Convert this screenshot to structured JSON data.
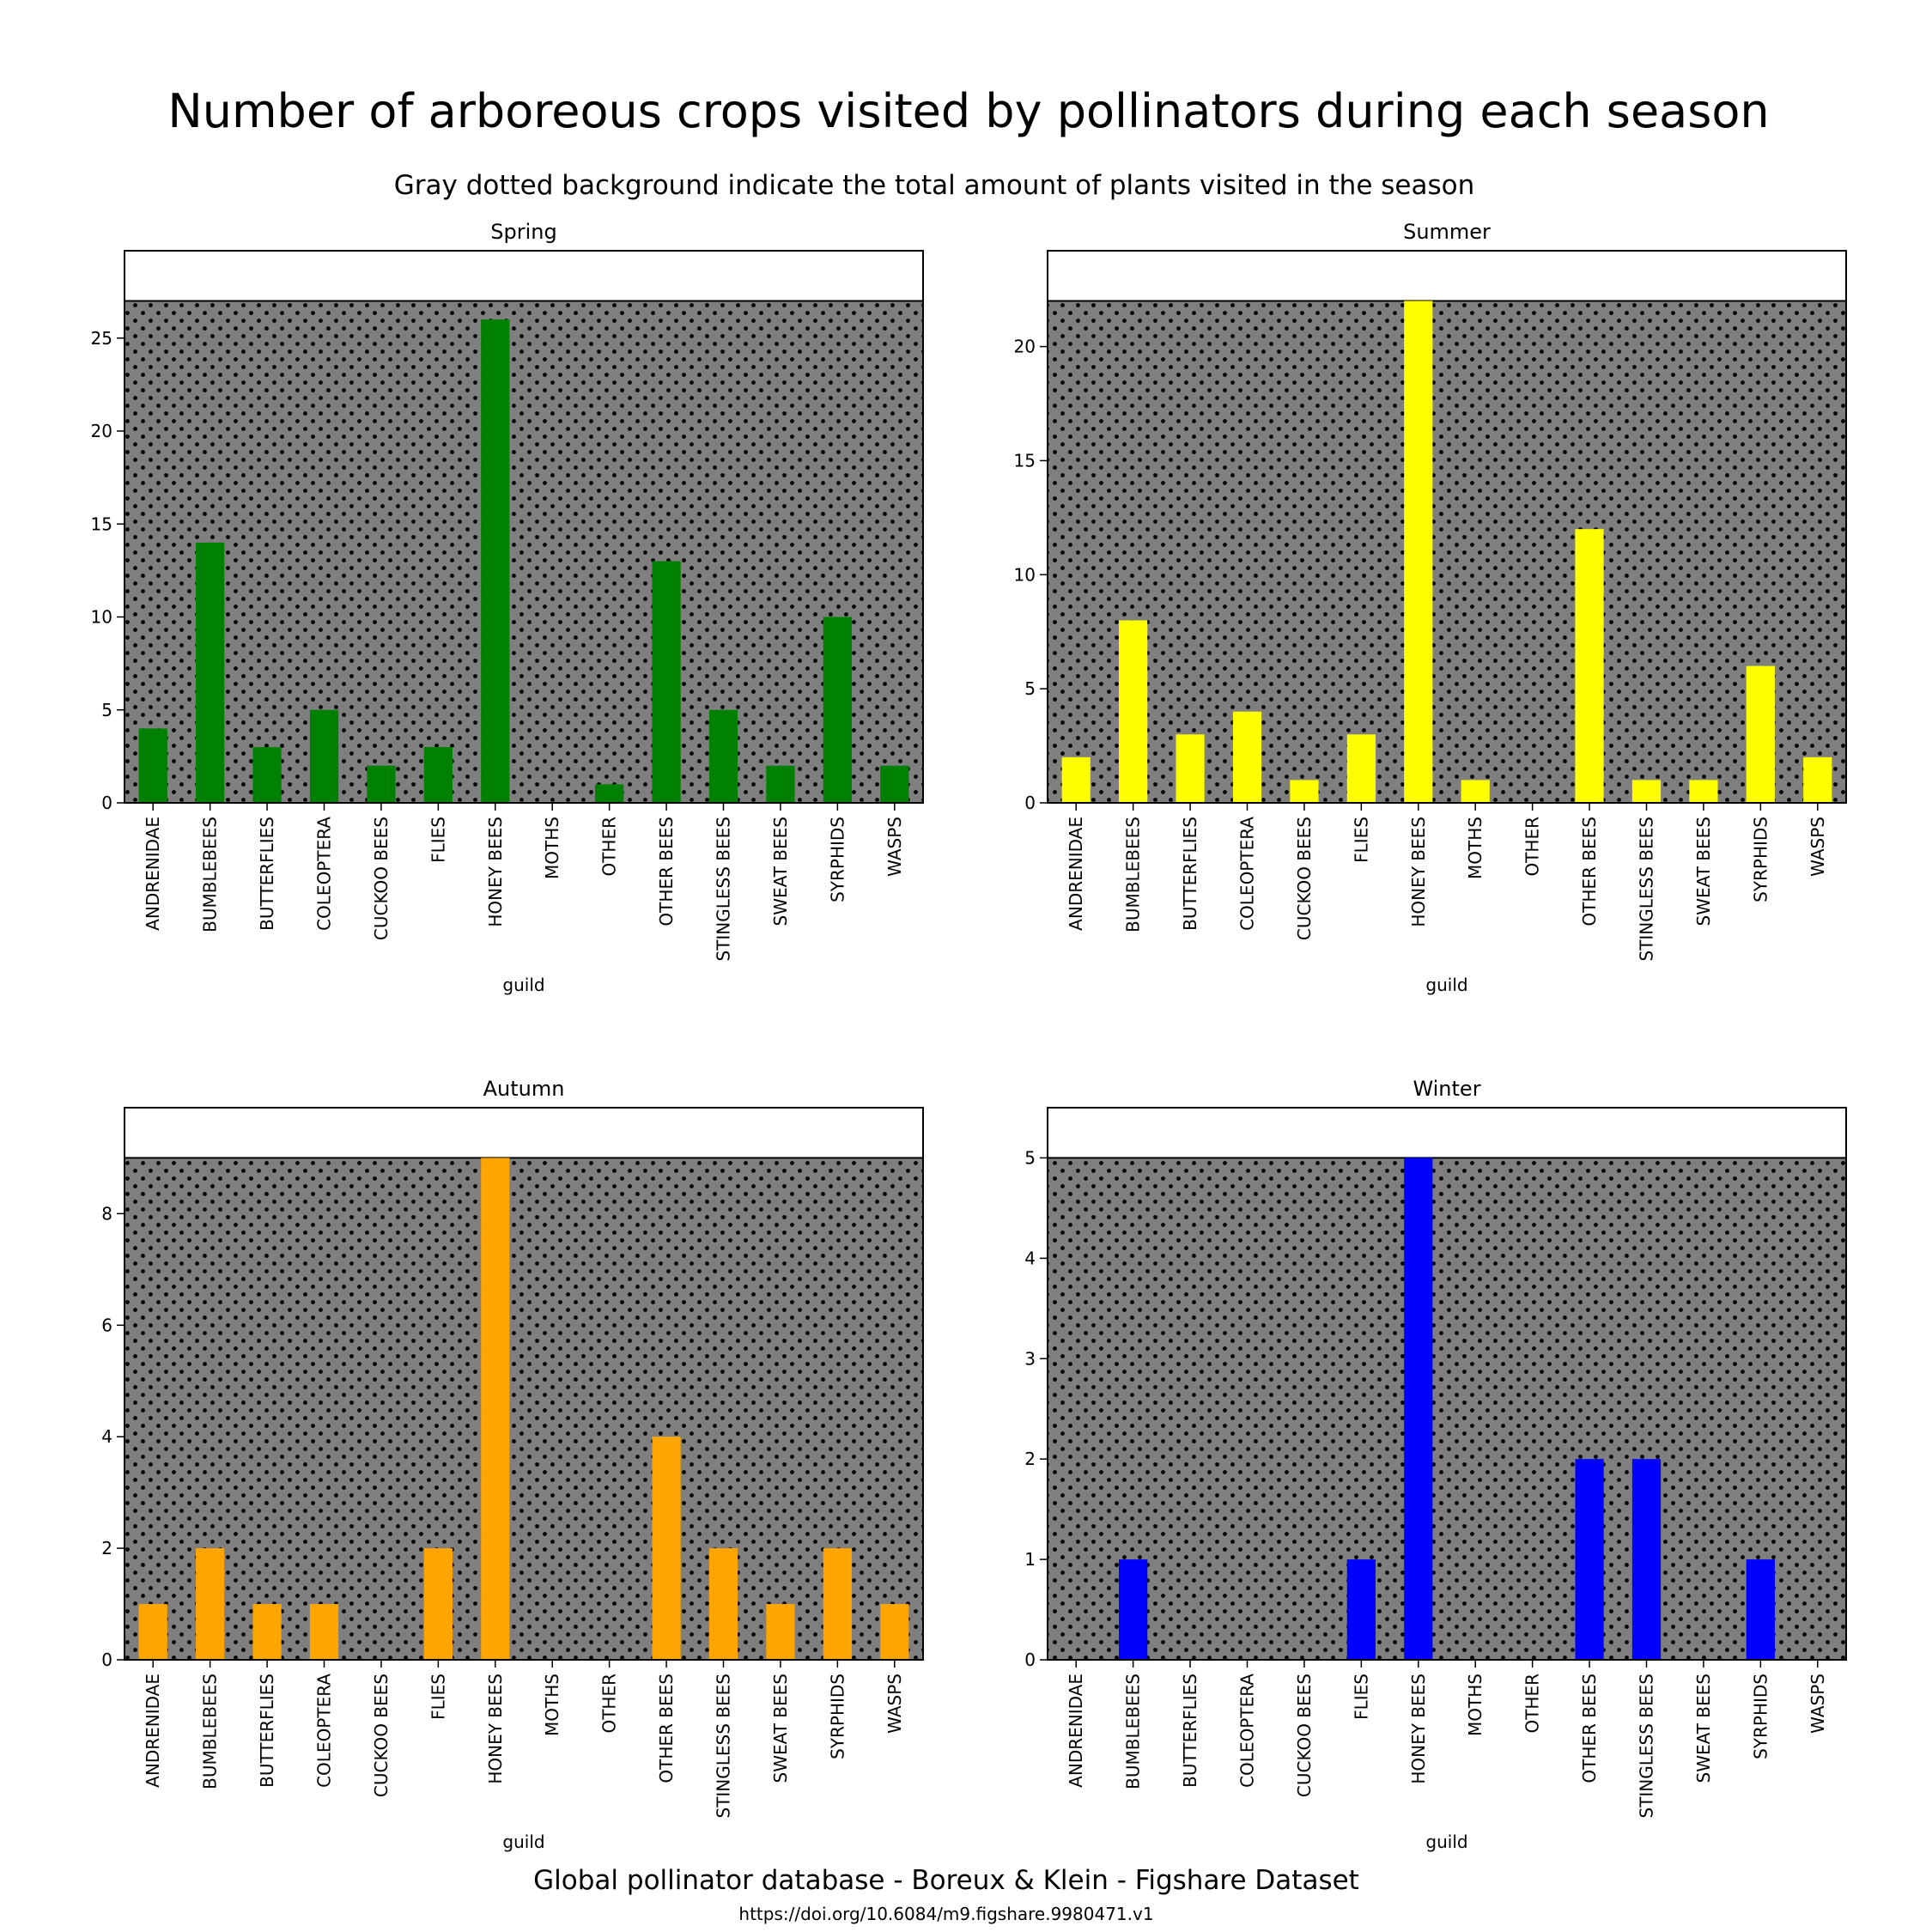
{
  "figure": {
    "title": "Number of arboreous crops visited by pollinators during each season",
    "subtitle": "Gray dotted background indicate the total amount of plants visited in the season",
    "footer": "Global pollinator database - Boreux & Klein - Figshare Dataset",
    "footer_url": "https://doi.org/10.6084/m9.figshare.9980471.v1"
  },
  "colors": {
    "background_fill": "#7f7f7f",
    "background_dots": "#000000",
    "axes_border": "#000000"
  },
  "chart_data": [
    {
      "type": "bar",
      "title": "Spring",
      "xlabel": "guild",
      "ylabel": "",
      "ylim": [
        0,
        29.7
      ],
      "yticks": [
        0,
        5,
        10,
        15,
        20,
        25
      ],
      "background_total": 27,
      "color": "#008000",
      "categories": [
        "ANDRENIDAE",
        "BUMBLEBEES",
        "BUTTERFLIES",
        "COLEOPTERA",
        "CUCKOO BEES",
        "FLIES",
        "HONEY BEES",
        "MOTHS",
        "OTHER",
        "OTHER BEES",
        "STINGLESS BEES",
        "SWEAT BEES",
        "SYRPHIDS",
        "WASPS"
      ],
      "values": [
        4,
        14,
        3,
        5,
        2,
        3,
        26,
        0,
        1,
        13,
        5,
        2,
        10,
        2
      ]
    },
    {
      "type": "bar",
      "title": "Summer",
      "xlabel": "guild",
      "ylabel": "",
      "ylim": [
        0,
        24.2
      ],
      "yticks": [
        0,
        5,
        10,
        15,
        20
      ],
      "background_total": 22,
      "color": "#ffff00",
      "categories": [
        "ANDRENIDAE",
        "BUMBLEBEES",
        "BUTTERFLIES",
        "COLEOPTERA",
        "CUCKOO BEES",
        "FLIES",
        "HONEY BEES",
        "MOTHS",
        "OTHER",
        "OTHER BEES",
        "STINGLESS BEES",
        "SWEAT BEES",
        "SYRPHIDS",
        "WASPS"
      ],
      "values": [
        2,
        8,
        3,
        4,
        1,
        3,
        22,
        1,
        0,
        12,
        1,
        1,
        6,
        2
      ]
    },
    {
      "type": "bar",
      "title": "Autumn",
      "xlabel": "guild",
      "ylabel": "",
      "ylim": [
        0,
        9.9
      ],
      "yticks": [
        0,
        2,
        4,
        6,
        8
      ],
      "background_total": 9,
      "color": "#ffa500",
      "categories": [
        "ANDRENIDAE",
        "BUMBLEBEES",
        "BUTTERFLIES",
        "COLEOPTERA",
        "CUCKOO BEES",
        "FLIES",
        "HONEY BEES",
        "MOTHS",
        "OTHER",
        "OTHER BEES",
        "STINGLESS BEES",
        "SWEAT BEES",
        "SYRPHIDS",
        "WASPS"
      ],
      "values": [
        1,
        2,
        1,
        1,
        0,
        2,
        9,
        0,
        0,
        4,
        2,
        1,
        2,
        1
      ]
    },
    {
      "type": "bar",
      "title": "Winter",
      "xlabel": "guild",
      "ylabel": "",
      "ylim": [
        0,
        5.5
      ],
      "yticks": [
        0,
        1,
        2,
        3,
        4,
        5
      ],
      "background_total": 5,
      "color": "#0000ff",
      "categories": [
        "ANDRENIDAE",
        "BUMBLEBEES",
        "BUTTERFLIES",
        "COLEOPTERA",
        "CUCKOO BEES",
        "FLIES",
        "HONEY BEES",
        "MOTHS",
        "OTHER",
        "OTHER BEES",
        "STINGLESS BEES",
        "SWEAT BEES",
        "SYRPHIDS",
        "WASPS"
      ],
      "values": [
        0,
        1,
        0,
        0,
        0,
        1,
        5,
        0,
        0,
        2,
        2,
        0,
        1,
        0
      ]
    }
  ]
}
